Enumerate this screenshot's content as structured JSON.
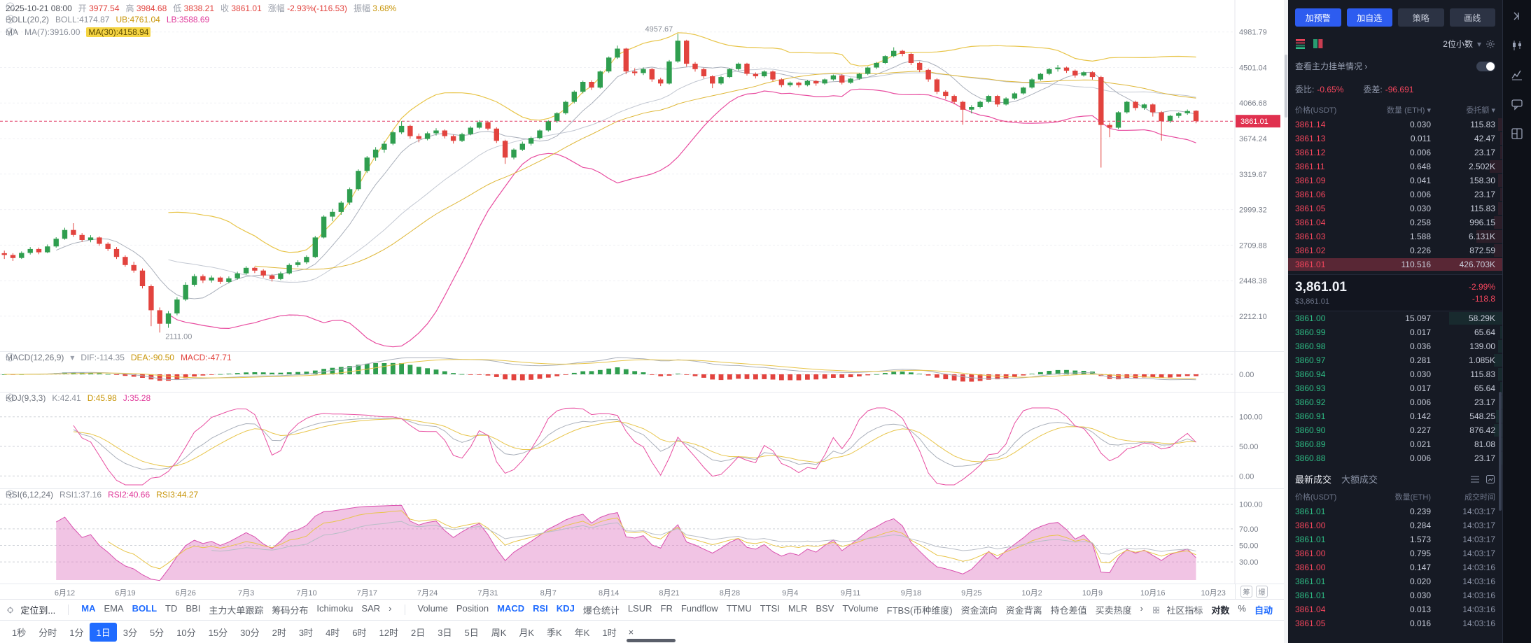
{
  "colors": {
    "up": "#2f9e4f",
    "down": "#e2433e",
    "ask": "#f6465d",
    "bid": "#2ebd85",
    "accent": "#1f6bff",
    "badge": "#e0314f",
    "yellow": "#e8c54a",
    "pink": "#e84da0",
    "gray_line": "#aab0bb",
    "boll_mid": "#c3c8d2"
  },
  "legend": {
    "time": "2025-10-21 08:00",
    "open_label": "开",
    "open": "3977.54",
    "high_label": "高",
    "high": "3984.68",
    "low_label": "低",
    "low": "3838.21",
    "close_label": "收",
    "close": "3861.01",
    "chg_label": "涨幅",
    "chg": "-2.93%(-116.53)",
    "amp_label": "振幅",
    "amp": "3.68%",
    "boll_name": "BOLL(20,2)",
    "boll_mb": "BOLL:4174.87",
    "boll_ub": "UB:4761.04",
    "boll_lb": "LB:3588.69",
    "ma_name": "MA",
    "ma7": "MA(7):3916.00",
    "ma30": "MA(30):4158.94",
    "macd_name": "MACD(12,26,9)",
    "dif": "DIF:-114.35",
    "dea": "DEA:-90.50",
    "macd": "MACD:-47.71",
    "kdj_name": "KDJ(9,3,3)",
    "k": "K:42.41",
    "d": "D:45.98",
    "j": "J:35.28",
    "rsi_name": "RSI(6,12,24)",
    "rsi1": "RSI1:37.16",
    "rsi2": "RSI2:40.66",
    "rsi3": "RSI3:44.27"
  },
  "price_axis": {
    "labels": [
      "4981.79",
      "4501.04",
      "4066.68",
      "3674.24",
      "3319.67",
      "2999.32",
      "2709.88",
      "2448.38",
      "2212.10"
    ],
    "last": "3861.01"
  },
  "panel_axis": {
    "macd_zero": "0.00",
    "kdj": [
      "100.00",
      "50.00",
      "0.00"
    ],
    "rsi": [
      "100.00",
      "70.00",
      "50.00",
      "30.00"
    ]
  },
  "chart_data": {
    "type": "candlestick",
    "log_scale": true,
    "price_min": 2050,
    "price_max": 5350,
    "slots": 143,
    "high_annotation": "4957.67",
    "high_idx": 78,
    "low_annotation": "2111.00",
    "low_idx": 18,
    "x_labels": [
      [
        7,
        "6月12"
      ],
      [
        14,
        "6月19"
      ],
      [
        21,
        "6月26"
      ],
      [
        28,
        "7月3"
      ],
      [
        35,
        "7月10"
      ],
      [
        42,
        "7月17"
      ],
      [
        49,
        "7月24"
      ],
      [
        56,
        "7月31"
      ],
      [
        63,
        "8月7"
      ],
      [
        70,
        "8月14"
      ],
      [
        77,
        "8月21"
      ],
      [
        84,
        "8月28"
      ],
      [
        91,
        "9月4"
      ],
      [
        98,
        "9月11"
      ],
      [
        105,
        "9月18"
      ],
      [
        112,
        "9月25"
      ],
      [
        119,
        "10月2"
      ],
      [
        126,
        "10月9"
      ],
      [
        133,
        "10月16"
      ],
      [
        140,
        "10月23"
      ]
    ],
    "overlay_chips": [
      "筹",
      "爆"
    ],
    "candles": [
      [
        2648,
        2668,
        2605,
        2635
      ],
      [
        2635,
        2648,
        2590,
        2612
      ],
      [
        2612,
        2662,
        2605,
        2650
      ],
      [
        2650,
        2695,
        2638,
        2680
      ],
      [
        2680,
        2692,
        2640,
        2655
      ],
      [
        2655,
        2715,
        2648,
        2700
      ],
      [
        2700,
        2772,
        2690,
        2760
      ],
      [
        2760,
        2848,
        2752,
        2830
      ],
      [
        2830,
        2885,
        2775,
        2790
      ],
      [
        2790,
        2805,
        2735,
        2750
      ],
      [
        2750,
        2788,
        2732,
        2770
      ],
      [
        2770,
        2778,
        2705,
        2720
      ],
      [
        2720,
        2732,
        2665,
        2680
      ],
      [
        2680,
        2695,
        2605,
        2620
      ],
      [
        2620,
        2632,
        2548,
        2560
      ],
      [
        2560,
        2585,
        2505,
        2520
      ],
      [
        2520,
        2535,
        2395,
        2410
      ],
      [
        2410,
        2422,
        2150,
        2250
      ],
      [
        2250,
        2268,
        2111,
        2165
      ],
      [
        2165,
        2245,
        2140,
        2230
      ],
      [
        2230,
        2335,
        2218,
        2320
      ],
      [
        2320,
        2438,
        2310,
        2420
      ],
      [
        2420,
        2495,
        2408,
        2480
      ],
      [
        2480,
        2492,
        2432,
        2450
      ],
      [
        2450,
        2485,
        2435,
        2470
      ],
      [
        2470,
        2478,
        2425,
        2440
      ],
      [
        2440,
        2478,
        2430,
        2465
      ],
      [
        2465,
        2512,
        2455,
        2500
      ],
      [
        2500,
        2552,
        2490,
        2540
      ],
      [
        2540,
        2548,
        2502,
        2520
      ],
      [
        2520,
        2530,
        2470,
        2485
      ],
      [
        2485,
        2495,
        2442,
        2460
      ],
      [
        2460,
        2512,
        2452,
        2500
      ],
      [
        2500,
        2572,
        2492,
        2560
      ],
      [
        2560,
        2595,
        2545,
        2580
      ],
      [
        2580,
        2632,
        2568,
        2620
      ],
      [
        2620,
        2782,
        2612,
        2770
      ],
      [
        2770,
        2952,
        2762,
        2940
      ],
      [
        2940,
        3005,
        2902,
        2980
      ],
      [
        2980,
        3075,
        2955,
        3060
      ],
      [
        3060,
        3195,
        3040,
        3180
      ],
      [
        3180,
        3365,
        3165,
        3350
      ],
      [
        3350,
        3495,
        3330,
        3480
      ],
      [
        3480,
        3585,
        3448,
        3560
      ],
      [
        3560,
        3648,
        3528,
        3620
      ],
      [
        3620,
        3755,
        3605,
        3740
      ],
      [
        3740,
        3862,
        3722,
        3810
      ],
      [
        3810,
        3822,
        3672,
        3700
      ],
      [
        3700,
        3728,
        3635,
        3670
      ],
      [
        3670,
        3748,
        3655,
        3730
      ],
      [
        3730,
        3785,
        3705,
        3760
      ],
      [
        3760,
        3772,
        3675,
        3700
      ],
      [
        3700,
        3715,
        3622,
        3650
      ],
      [
        3650,
        3735,
        3638,
        3720
      ],
      [
        3720,
        3805,
        3708,
        3790
      ],
      [
        3790,
        3872,
        3775,
        3850
      ],
      [
        3850,
        3865,
        3762,
        3780
      ],
      [
        3780,
        3795,
        3628,
        3650
      ],
      [
        3650,
        3662,
        3418,
        3480
      ],
      [
        3480,
        3572,
        3462,
        3560
      ],
      [
        3560,
        3642,
        3545,
        3620
      ],
      [
        3620,
        3695,
        3602,
        3680
      ],
      [
        3680,
        3772,
        3665,
        3760
      ],
      [
        3760,
        3872,
        3748,
        3860
      ],
      [
        3860,
        3962,
        3842,
        3950
      ],
      [
        3950,
        4095,
        3935,
        4080
      ],
      [
        4080,
        4215,
        4062,
        4200
      ],
      [
        4200,
        4335,
        4180,
        4320
      ],
      [
        4320,
        4338,
        4222,
        4250
      ],
      [
        4250,
        4462,
        4238,
        4450
      ],
      [
        4450,
        4645,
        4432,
        4630
      ],
      [
        4630,
        4792,
        4612,
        4750
      ],
      [
        4750,
        4762,
        4415,
        4450
      ],
      [
        4450,
        4492,
        4398,
        4430
      ],
      [
        4430,
        4502,
        4405,
        4480
      ],
      [
        4480,
        4495,
        4322,
        4350
      ],
      [
        4350,
        4372,
        4268,
        4300
      ],
      [
        4300,
        4598,
        4288,
        4580
      ],
      [
        4580,
        4957.67,
        4562,
        4860
      ],
      [
        4860,
        4872,
        4512,
        4550
      ],
      [
        4550,
        4572,
        4448,
        4480
      ],
      [
        4480,
        4498,
        4362,
        4390
      ],
      [
        4390,
        4402,
        4242,
        4300
      ],
      [
        4300,
        4395,
        4285,
        4380
      ],
      [
        4380,
        4492,
        4368,
        4480
      ],
      [
        4480,
        4565,
        4462,
        4550
      ],
      [
        4550,
        4562,
        4398,
        4420
      ],
      [
        4420,
        4438,
        4362,
        4390
      ],
      [
        4390,
        4465,
        4375,
        4450
      ],
      [
        4450,
        4462,
        4328,
        4350
      ],
      [
        4350,
        4365,
        4255,
        4280
      ],
      [
        4280,
        4325,
        4258,
        4310
      ],
      [
        4310,
        4322,
        4252,
        4280
      ],
      [
        4280,
        4345,
        4265,
        4330
      ],
      [
        4330,
        4342,
        4272,
        4300
      ],
      [
        4300,
        4362,
        4285,
        4350
      ],
      [
        4350,
        4412,
        4335,
        4400
      ],
      [
        4400,
        4415,
        4288,
        4310
      ],
      [
        4310,
        4372,
        4295,
        4360
      ],
      [
        4360,
        4432,
        4345,
        4420
      ],
      [
        4420,
        4512,
        4405,
        4500
      ],
      [
        4500,
        4572,
        4482,
        4560
      ],
      [
        4560,
        4662,
        4545,
        4650
      ],
      [
        4650,
        4768,
        4632,
        4720
      ],
      [
        4720,
        4735,
        4648,
        4680
      ],
      [
        4680,
        4695,
        4532,
        4560
      ],
      [
        4560,
        4578,
        4442,
        4470
      ],
      [
        4470,
        4485,
        4322,
        4350
      ],
      [
        4350,
        4365,
        4172,
        4200
      ],
      [
        4200,
        4218,
        4112,
        4150
      ],
      [
        4150,
        4165,
        4052,
        4080
      ],
      [
        4080,
        4095,
        3822,
        3990
      ],
      [
        3990,
        4042,
        3948,
        4020
      ],
      [
        4020,
        4095,
        4005,
        4080
      ],
      [
        4080,
        4162,
        4065,
        4150
      ],
      [
        4150,
        4162,
        4022,
        4050
      ],
      [
        4050,
        4135,
        4038,
        4120
      ],
      [
        4120,
        4195,
        4105,
        4180
      ],
      [
        4180,
        4262,
        4165,
        4250
      ],
      [
        4250,
        4365,
        4238,
        4350
      ],
      [
        4350,
        4432,
        4335,
        4420
      ],
      [
        4420,
        4495,
        4405,
        4480
      ],
      [
        4480,
        4532,
        4448,
        4500
      ],
      [
        4500,
        4512,
        4432,
        4460
      ],
      [
        4460,
        4475,
        4372,
        4400
      ],
      [
        4400,
        4455,
        4385,
        4440
      ],
      [
        4440,
        4452,
        4348,
        4380
      ],
      [
        4380,
        4395,
        3382,
        3820
      ],
      [
        3820,
        3845,
        3688,
        3790
      ],
      [
        3790,
        3972,
        3775,
        3960
      ],
      [
        3960,
        4092,
        3945,
        4080
      ],
      [
        4080,
        4095,
        3982,
        4010
      ],
      [
        4010,
        4062,
        3988,
        4050
      ],
      [
        4050,
        4062,
        3912,
        3960
      ],
      [
        3960,
        3975,
        3652,
        3860
      ],
      [
        3860,
        3932,
        3842,
        3920
      ],
      [
        3920,
        3962,
        3895,
        3950
      ],
      [
        3950,
        3992,
        3932,
        3975
      ],
      [
        3977.54,
        3984.68,
        3838.21,
        3861.01
      ]
    ]
  },
  "indicator_bar": {
    "locate": "定位到...",
    "group1": [
      [
        "MA",
        1
      ],
      [
        "EMA",
        0
      ],
      [
        "BOLL",
        1
      ],
      [
        "TD",
        0
      ],
      [
        "BBI",
        0
      ],
      [
        "主力大单跟踪",
        0
      ],
      [
        "筹码分布",
        0
      ],
      [
        "Ichimoku",
        0
      ],
      [
        "SAR",
        0
      ],
      [
        "›",
        0
      ]
    ],
    "group2": [
      [
        "Volume",
        0
      ],
      [
        "Position",
        0
      ],
      [
        "MACD",
        1
      ],
      [
        "RSI",
        1
      ],
      [
        "KDJ",
        1
      ],
      [
        "爆仓统计",
        0
      ],
      [
        "LSUR",
        0
      ],
      [
        "FR",
        0
      ],
      [
        "Fundflow",
        0
      ],
      [
        "TTMU",
        0
      ],
      [
        "TTSI",
        0
      ],
      [
        "MLR",
        0
      ],
      [
        "BSV",
        0
      ],
      [
        "TVolume",
        0
      ],
      [
        "FTBS(币种维度)",
        0
      ],
      [
        "资金流向",
        0
      ],
      [
        "资金背离",
        0
      ],
      [
        "持仓差值",
        0
      ],
      [
        "买卖热度",
        0
      ],
      [
        "›",
        0
      ]
    ],
    "right": [
      [
        "社区指标",
        0
      ],
      [
        "对数",
        2
      ],
      [
        "%",
        0
      ],
      [
        "自动",
        1
      ]
    ]
  },
  "time_bar": {
    "items": [
      "1秒",
      "分时",
      "1分",
      "1日",
      "3分",
      "5分",
      "10分",
      "15分",
      "30分",
      "2时",
      "3时",
      "4时",
      "6时",
      "12时",
      "2日",
      "3日",
      "5日",
      "周K",
      "月K",
      "季K",
      "年K",
      "1时"
    ],
    "active": "1日",
    "close": "×"
  },
  "ob": {
    "buttons": [
      "加预警",
      "加自选",
      "策略",
      "画线"
    ],
    "decimals": "2位小数",
    "link": "查看主力挂单情况 ›",
    "ratio_label": "委比:",
    "ratio": "-0.65%",
    "diff_label": "委差:",
    "diff": "-96.691",
    "cols": [
      "价格(USDT)",
      "数量 (ETH)",
      "委托额"
    ],
    "asks": [
      [
        "3861.14",
        "0.030",
        "115.83",
        2
      ],
      [
        "3861.13",
        "0.011",
        "42.47",
        1
      ],
      [
        "3861.12",
        "0.006",
        "23.17",
        1
      ],
      [
        "3861.11",
        "0.648",
        "2.502K",
        6
      ],
      [
        "3861.09",
        "0.041",
        "158.30",
        2
      ],
      [
        "3861.06",
        "0.006",
        "23.17",
        1
      ],
      [
        "3861.05",
        "0.030",
        "115.83",
        2
      ],
      [
        "3861.04",
        "0.258",
        "996.15",
        4
      ],
      [
        "3861.03",
        "1.588",
        "6.131K",
        12
      ],
      [
        "3861.02",
        "0.226",
        "872.59",
        4
      ],
      [
        "3861.01",
        "110.516",
        "426.703K",
        100
      ]
    ],
    "bids": [
      [
        "3861.00",
        "15.097",
        "58.29K",
        25
      ],
      [
        "3860.99",
        "0.017",
        "65.64",
        1
      ],
      [
        "3860.98",
        "0.036",
        "139.00",
        2
      ],
      [
        "3860.97",
        "0.281",
        "1.085K",
        4
      ],
      [
        "3860.94",
        "0.030",
        "115.83",
        2
      ],
      [
        "3860.93",
        "0.017",
        "65.64",
        1
      ],
      [
        "3860.92",
        "0.006",
        "23.17",
        1
      ],
      [
        "3860.91",
        "0.142",
        "548.25",
        3
      ],
      [
        "3860.90",
        "0.227",
        "876.42",
        4
      ],
      [
        "3860.89",
        "0.021",
        "81.08",
        1
      ],
      [
        "3860.88",
        "0.006",
        "23.17",
        1
      ]
    ],
    "mid": {
      "price": "3,861.01",
      "usd": "$3,861.01",
      "chg_pct": "-2.99%",
      "chg_abs": "-118.8"
    },
    "trade_tabs": [
      "最新成交",
      "大额成交"
    ],
    "trade_cols": [
      "价格(USDT)",
      "数量(ETH)",
      "成交时间"
    ],
    "trades": [
      [
        "3861.01",
        "0.239",
        "14:03:17",
        "u"
      ],
      [
        "3861.00",
        "0.284",
        "14:03:17",
        "d"
      ],
      [
        "3861.01",
        "1.573",
        "14:03:17",
        "u"
      ],
      [
        "3861.00",
        "0.795",
        "14:03:17",
        "d"
      ],
      [
        "3861.00",
        "0.147",
        "14:03:16",
        "d"
      ],
      [
        "3861.01",
        "0.020",
        "14:03:16",
        "u"
      ],
      [
        "3861.01",
        "0.030",
        "14:03:16",
        "u"
      ],
      [
        "3861.04",
        "0.013",
        "14:03:16",
        "d"
      ],
      [
        "3861.05",
        "0.016",
        "14:03:16",
        "d"
      ]
    ]
  }
}
